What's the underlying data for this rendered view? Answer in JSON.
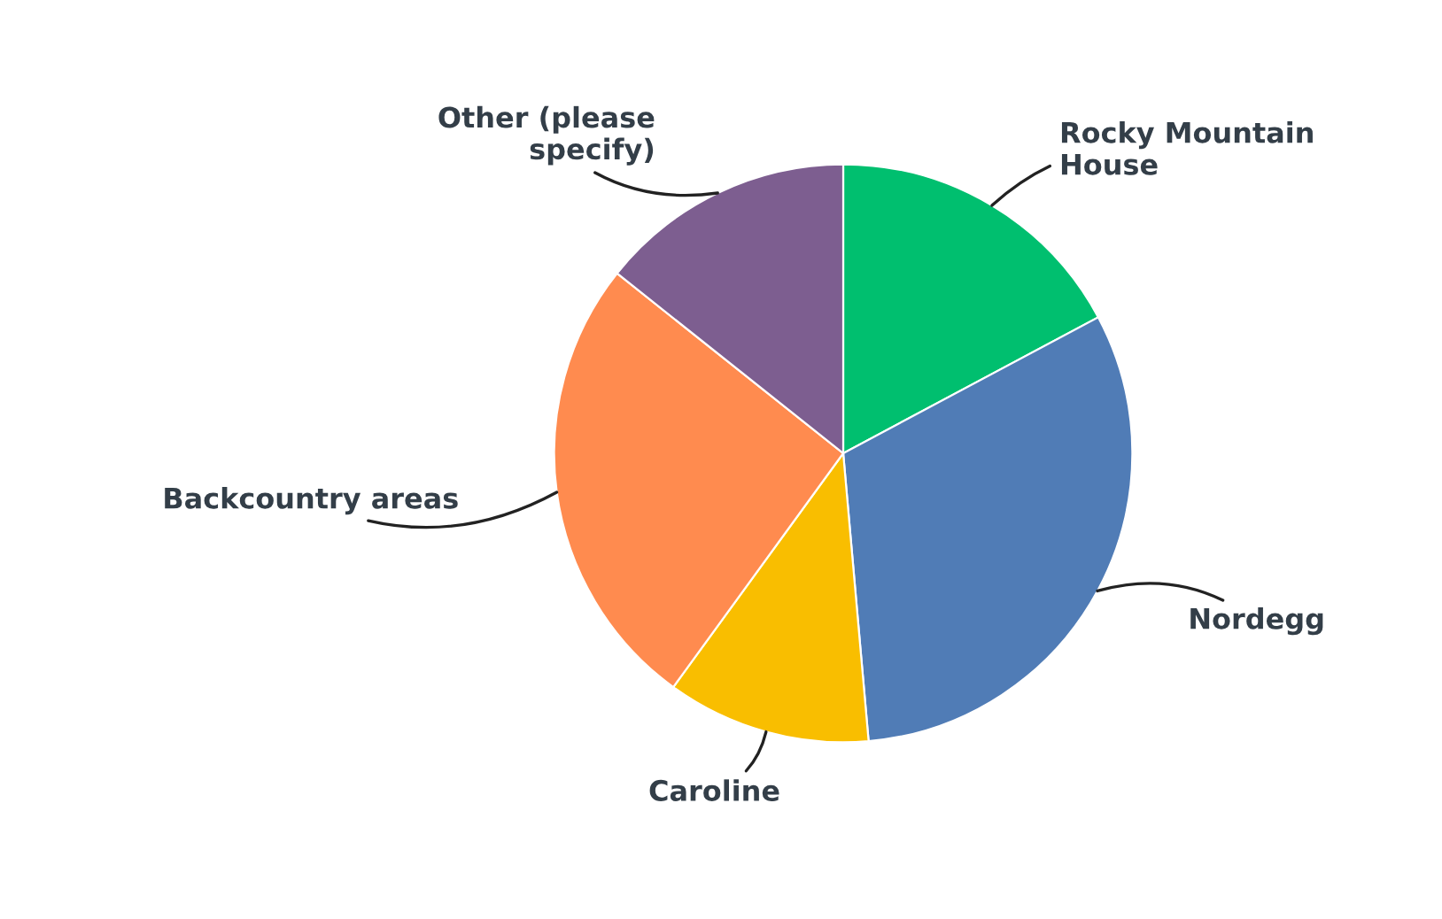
{
  "chart_data": {
    "type": "pie",
    "categories": [
      "Rocky Mountain\nHouse",
      "Nordegg",
      "Caroline",
      "Backcountry areas",
      "Other (please\nspecify)"
    ],
    "values": [
      17.2,
      31.4,
      11.4,
      25.7,
      14.3
    ],
    "colors": [
      "#00bf6f",
      "#507cb6",
      "#f9be00",
      "#ff8b4f",
      "#7d5e90"
    ],
    "legend": false
  }
}
